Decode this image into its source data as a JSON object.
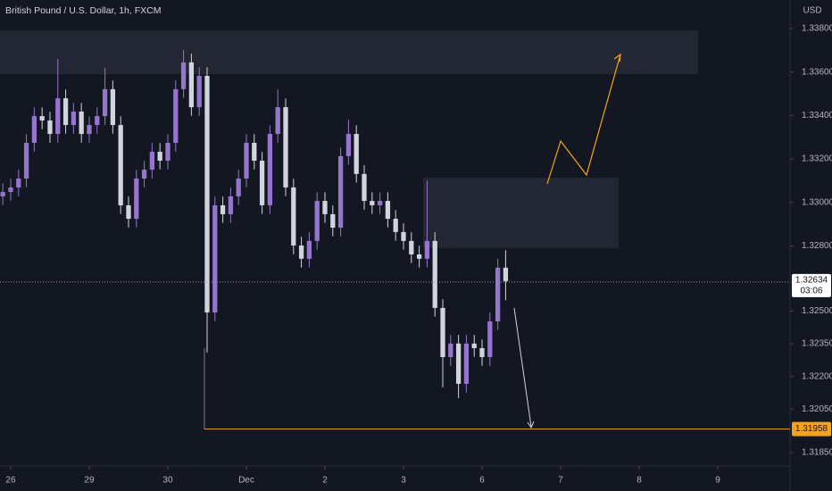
{
  "chart_data": {
    "type": "candlestick",
    "title": "British Pound / U.S. Dollar, 1h, FXCM",
    "currency": "USD",
    "countdown": "03:06",
    "up_color": "#9575cd",
    "down_color": "#d1d4dc",
    "x": [
      -0.1,
      0,
      0.1,
      0.2,
      0.3,
      0.4,
      0.5,
      0.6,
      0.7,
      0.8,
      0.9,
      1,
      1.1,
      1.2,
      1.3,
      1.4,
      1.5,
      1.6,
      1.7,
      1.8,
      1.9,
      2,
      2.1,
      2.2,
      2.3,
      2.4,
      2.5,
      2.6,
      2.7,
      2.8,
      2.9,
      3,
      3.1,
      3.2,
      3.3,
      3.4,
      3.5,
      3.6,
      3.7,
      3.8,
      3.9,
      4,
      4.1,
      4.2,
      4.3,
      4.4,
      4.5,
      4.6,
      4.7,
      4.8,
      4.9,
      5,
      5.1,
      5.2,
      5.3,
      5.4,
      5.5,
      5.6,
      5.7,
      5.8,
      5.9,
      6,
      6.1,
      6.2,
      6.3
    ],
    "open": [
      1.33028,
      1.33048,
      1.33069,
      1.3311,
      1.33274,
      1.33397,
      1.33377,
      1.33315,
      1.33479,
      1.33356,
      1.33418,
      1.33315,
      1.33356,
      1.33397,
      1.33521,
      1.33356,
      1.32987,
      1.32925,
      1.3311,
      1.33151,
      1.33233,
      1.33192,
      1.33274,
      1.33521,
      1.33644,
      1.33438,
      1.33582,
      1.32494,
      1.32987,
      1.32946,
      1.33028,
      1.3311,
      1.33274,
      1.33192,
      1.32987,
      1.33315,
      1.33438,
      1.33069,
      1.32802,
      1.32741,
      1.32823,
      1.33007,
      1.32946,
      1.32884,
      1.33213,
      1.33315,
      1.33131,
      1.33007,
      1.32987,
      1.33007,
      1.32925,
      1.32864,
      1.32823,
      1.32761,
      1.32741,
      1.32823,
      1.32515,
      1.32289,
      1.32351,
      1.32166,
      1.32351,
      1.3233,
      1.32289,
      1.32453,
      1.327
    ],
    "high": [
      1.33088,
      1.33109,
      1.3315,
      1.33314,
      1.33437,
      1.33437,
      1.33417,
      1.3366,
      1.33519,
      1.33458,
      1.33458,
      1.33396,
      1.33437,
      1.3362,
      1.33561,
      1.33396,
      1.33027,
      1.3315,
      1.33191,
      1.33273,
      1.33273,
      1.33314,
      1.33561,
      1.337,
      1.33684,
      1.33622,
      1.33622,
      1.33027,
      1.33027,
      1.33068,
      1.3315,
      1.33314,
      1.33314,
      1.33232,
      1.33355,
      1.3352,
      1.33478,
      1.33109,
      1.32842,
      1.32863,
      1.33047,
      1.33047,
      1.32986,
      1.33253,
      1.3338,
      1.33355,
      1.33171,
      1.33047,
      1.33047,
      1.33047,
      1.32965,
      1.32904,
      1.32863,
      1.32801,
      1.331,
      1.32863,
      1.32555,
      1.32391,
      1.32391,
      1.32391,
      1.32391,
      1.3237,
      1.32493,
      1.3274,
      1.3278
    ],
    "low": [
      1.32988,
      1.33008,
      1.33029,
      1.3307,
      1.33234,
      1.33337,
      1.33275,
      1.33275,
      1.33316,
      1.33316,
      1.33275,
      1.33275,
      1.33316,
      1.33357,
      1.33316,
      1.32947,
      1.32885,
      1.32885,
      1.3307,
      1.33111,
      1.33152,
      1.33152,
      1.33234,
      1.33481,
      1.33398,
      1.33398,
      1.3231,
      1.32454,
      1.32906,
      1.32906,
      1.32988,
      1.3307,
      1.33152,
      1.32947,
      1.32947,
      1.33275,
      1.33029,
      1.32762,
      1.32701,
      1.32701,
      1.32783,
      1.32906,
      1.32844,
      1.32844,
      1.33173,
      1.33091,
      1.32967,
      1.32947,
      1.32947,
      1.32885,
      1.32824,
      1.32783,
      1.32721,
      1.32701,
      1.32701,
      1.32475,
      1.3215,
      1.32249,
      1.321,
      1.32126,
      1.3229,
      1.32249,
      1.32249,
      1.32413,
      1.3255
    ],
    "close": [
      1.33048,
      1.33069,
      1.3311,
      1.33274,
      1.33397,
      1.33377,
      1.33315,
      1.33479,
      1.33356,
      1.33418,
      1.33315,
      1.33356,
      1.33397,
      1.33521,
      1.33356,
      1.32987,
      1.32925,
      1.3311,
      1.33151,
      1.33233,
      1.33192,
      1.33274,
      1.33521,
      1.33644,
      1.33438,
      1.33582,
      1.32494,
      1.32987,
      1.32946,
      1.33028,
      1.3311,
      1.33274,
      1.33192,
      1.32987,
      1.33315,
      1.33438,
      1.33069,
      1.32802,
      1.32741,
      1.32823,
      1.33007,
      1.32946,
      1.32884,
      1.33213,
      1.33315,
      1.33131,
      1.33007,
      1.32987,
      1.33007,
      1.32925,
      1.32864,
      1.32823,
      1.32761,
      1.32741,
      1.32823,
      1.32515,
      1.32289,
      1.32351,
      1.32166,
      1.32351,
      1.3233,
      1.32289,
      1.32453,
      1.327,
      1.32638
    ],
    "xlim": [
      -0.136,
      9.92
    ],
    "ylim": [
      1.31788,
      1.33931
    ],
    "xticks": [
      {
        "value": 0,
        "label": "26"
      },
      {
        "value": 1,
        "label": "29"
      },
      {
        "value": 2,
        "label": "30"
      },
      {
        "value": 3,
        "label": "Dec"
      },
      {
        "value": 4,
        "label": "2"
      },
      {
        "value": 5,
        "label": "3"
      },
      {
        "value": 6,
        "label": "6"
      },
      {
        "value": 7,
        "label": "7"
      },
      {
        "value": 8,
        "label": "8"
      },
      {
        "value": 9,
        "label": "9"
      }
    ],
    "yticks": [
      {
        "value": 1.338,
        "label": "1.33800"
      },
      {
        "value": 1.336,
        "label": "1.33600"
      },
      {
        "value": 1.334,
        "label": "1.33400"
      },
      {
        "value": 1.332,
        "label": "1.33200"
      },
      {
        "value": 1.33,
        "label": "1.33000"
      },
      {
        "value": 1.328,
        "label": "1.32800"
      },
      {
        "value": 1.325,
        "label": "1.32500"
      },
      {
        "value": 1.3235,
        "label": "1.32350"
      },
      {
        "value": 1.322,
        "label": "1.32200"
      },
      {
        "value": 1.3205,
        "label": "1.32050"
      },
      {
        "value": 1.3185,
        "label": "1.31850"
      }
    ],
    "price_lines": [
      {
        "value": 1.32634,
        "color": "#9598a1"
      },
      {
        "value": 1.31958,
        "color": "#f7a21b"
      }
    ]
  }
}
